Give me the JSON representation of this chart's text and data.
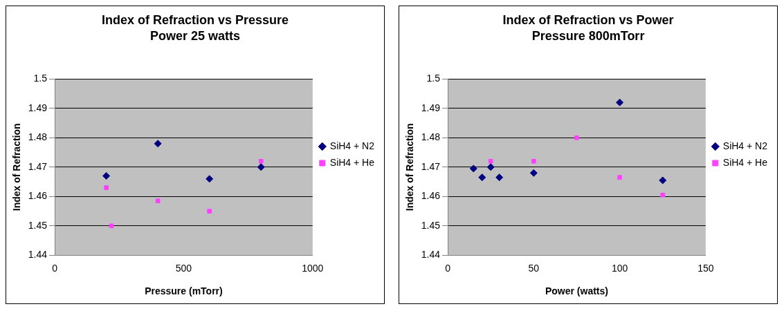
{
  "chart_data": [
    {
      "type": "scatter",
      "title": "Index of Refraction vs Pressure",
      "subtitle": "Power 25 watts",
      "xlabel": "Pressure (mTorr)",
      "ylabel": "Index of Refraction",
      "xlim": [
        0,
        1000
      ],
      "xticks": [
        0,
        500,
        1000
      ],
      "ylim": [
        1.44,
        1.5
      ],
      "yticks": [
        1.44,
        1.45,
        1.46,
        1.47,
        1.48,
        1.49,
        1.5
      ],
      "grid": "y",
      "legend": "right",
      "series": [
        {
          "name": "SiH4 + N2",
          "color": "#000080",
          "marker": "diamond",
          "x": [
            200,
            400,
            600,
            800
          ],
          "values": [
            1.467,
            1.478,
            1.466,
            1.47
          ]
        },
        {
          "name": "SiH4 + He",
          "color": "#ff40ff",
          "marker": "square",
          "x": [
            200,
            220,
            400,
            600,
            800
          ],
          "values": [
            1.463,
            1.45,
            1.4585,
            1.455,
            1.472
          ]
        }
      ]
    },
    {
      "type": "scatter",
      "title": "Index of Refraction vs Power",
      "subtitle": "Pressure 800mTorr",
      "xlabel": "Power (watts)",
      "ylabel": "Index of Refraction",
      "xlim": [
        0,
        150
      ],
      "xticks": [
        0,
        50,
        100,
        150
      ],
      "ylim": [
        1.44,
        1.5
      ],
      "yticks": [
        1.44,
        1.45,
        1.46,
        1.47,
        1.48,
        1.49,
        1.5
      ],
      "grid": "y",
      "legend": "right",
      "series": [
        {
          "name": "SiH4 + N2",
          "color": "#000080",
          "marker": "diamond",
          "x": [
            15,
            20,
            25,
            30,
            50,
            100,
            125
          ],
          "values": [
            1.4695,
            1.4665,
            1.47,
            1.4665,
            1.468,
            1.492,
            1.4655
          ]
        },
        {
          "name": "SiH4 + He",
          "color": "#ff40ff",
          "marker": "square",
          "x": [
            25,
            50,
            75,
            100,
            125
          ],
          "values": [
            1.472,
            1.472,
            1.48,
            1.4665,
            1.4605
          ]
        }
      ]
    }
  ]
}
